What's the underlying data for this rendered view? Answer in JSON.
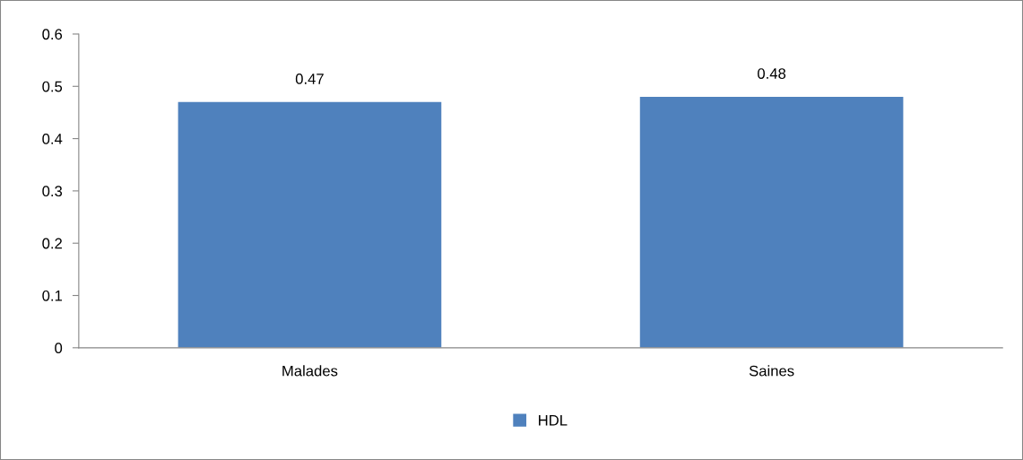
{
  "chart_data": {
    "type": "bar",
    "categories": [
      "Malades",
      "Saines"
    ],
    "series": [
      {
        "name": "HDL",
        "color": "#4f81bd",
        "values": [
          0.47,
          0.48
        ]
      }
    ],
    "ylim": [
      0,
      0.6
    ],
    "yticks": [
      0,
      0.1,
      0.2,
      0.3,
      0.4,
      0.5,
      0.6
    ],
    "grid": false,
    "legend": "bottom",
    "data_labels": true
  }
}
